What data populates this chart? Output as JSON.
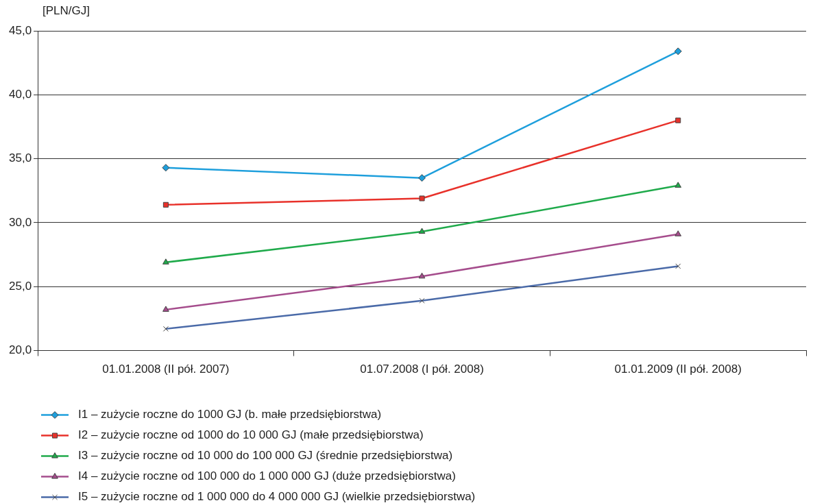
{
  "chart_data": {
    "type": "line",
    "ylabel": "[PLN/GJ]",
    "categories": [
      "01.01.2008 (II pół. 2007)",
      "01.07.2008 (I pół. 2008)",
      "01.01.2009 (II pół. 2008)"
    ],
    "ylim": [
      20,
      45
    ],
    "yticks": [
      {
        "value": 20,
        "label": "20,0"
      },
      {
        "value": 25,
        "label": "25,0"
      },
      {
        "value": 30,
        "label": "30,0"
      },
      {
        "value": 35,
        "label": "35,0"
      },
      {
        "value": 40,
        "label": "40,0"
      },
      {
        "value": 45,
        "label": "45,0"
      }
    ],
    "grid": "y",
    "legend": "bottom",
    "line_style": "solid",
    "series": [
      {
        "name": "I1 – zużycie roczne do 1000 GJ (b. małe przedsiębiorstwa)",
        "color": "#1e9fdc",
        "marker": "diamond",
        "values": [
          34.3,
          33.5,
          43.4
        ]
      },
      {
        "name": "I2 – zużycie roczne od 1000 do 10 000 GJ (małe przedsiębiorstwa)",
        "color": "#e8312a",
        "marker": "square",
        "values": [
          31.4,
          31.9,
          38.0
        ]
      },
      {
        "name": "I3 – zużycie roczne od 10 000 do 100 000 GJ (średnie przedsiębiorstwa)",
        "color": "#1faa4b",
        "marker": "triangle",
        "values": [
          26.9,
          29.3,
          32.9
        ]
      },
      {
        "name": "I4 – zużycie roczne od 100 000 do 1 000 000 GJ (duże przedsiębiorstwa)",
        "color": "#a54c8c",
        "marker": "triangle",
        "values": [
          23.2,
          25.8,
          29.1
        ]
      },
      {
        "name": "I5 – zużycie roczne od 1 000 000 do 4 000 000 GJ (wielkie przedsiębiorstwa)",
        "color": "#4a6aa8",
        "marker": "cross",
        "values": [
          21.7,
          23.9,
          26.6
        ]
      }
    ]
  }
}
